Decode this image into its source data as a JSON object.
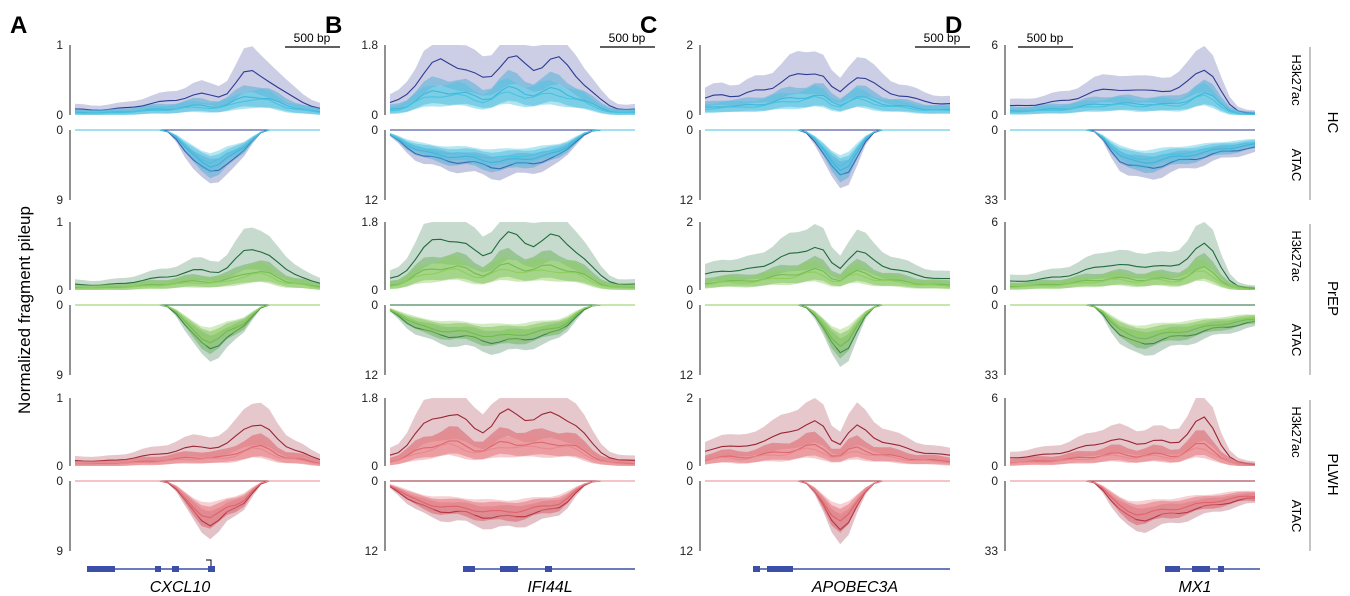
{
  "y_axis_label": "Normalized fragment pileup",
  "track_labels": {
    "h3k27ac": "H3k27ac",
    "atac": "ATAC"
  },
  "groups": [
    {
      "name": "HC",
      "colors": [
        "#2e3a94",
        "#3fa9d6",
        "#46c4e0"
      ]
    },
    {
      "name": "PrEP",
      "colors": [
        "#1f6b3a",
        "#5fae4a",
        "#8fce5e"
      ]
    },
    {
      "name": "PLWH",
      "colors": [
        "#9b2535",
        "#d64a55",
        "#e8898f"
      ]
    }
  ],
  "panels": [
    {
      "letter": "A",
      "gene": "CXCL10",
      "scale_bar": "500 bp",
      "h3k27ac_max": "1",
      "atac_max": "9",
      "h_zero": "0",
      "a_zero": "0"
    },
    {
      "letter": "B",
      "gene": "IFI44L",
      "scale_bar": "500 bp",
      "h3k27ac_max": "1.8",
      "atac_max": "12",
      "h_zero": "0",
      "a_zero": "0"
    },
    {
      "letter": "C",
      "gene": "APOBEC3A",
      "scale_bar": "500 bp",
      "h3k27ac_max": "2",
      "atac_max": "12",
      "h_zero": "0",
      "a_zero": "0"
    },
    {
      "letter": "D",
      "gene": "MX1",
      "scale_bar": "500 bp",
      "h3k27ac_max": "6",
      "atac_max": "33",
      "h_zero": "0",
      "a_zero": "0"
    }
  ],
  "chart_data": {
    "type": "area",
    "description_of_series": "Mean signal lines with shaded variability bands for H3K27ac (upward) and ATAC (downward) tracks per group and gene locus",
    "series_per_group": 3,
    "shapes": {
      "A": {
        "h3k27ac": [
          0.08,
          0.08,
          0.07,
          0.07,
          0.08,
          0.09,
          0.1,
          0.12,
          0.14,
          0.16,
          0.18,
          0.2,
          0.22,
          0.25,
          0.28,
          0.3,
          0.28,
          0.26,
          0.3,
          0.4,
          0.62,
          0.66,
          0.6,
          0.52,
          0.35,
          0.3,
          0.25,
          0.2,
          0.12,
          0.08
        ],
        "atac": [
          0,
          0,
          0,
          0,
          0,
          0,
          0,
          0,
          0,
          0,
          0,
          0,
          0.1,
          0.3,
          0.45,
          0.55,
          0.65,
          0.55,
          0.45,
          0.4,
          0.35,
          0.15,
          0,
          0,
          0,
          0,
          0,
          0,
          0,
          0
        ]
      },
      "B": {
        "h3k27ac": [
          0.15,
          0.2,
          0.3,
          0.45,
          0.6,
          0.7,
          0.8,
          0.78,
          0.72,
          0.65,
          0.55,
          0.5,
          0.55,
          0.75,
          0.82,
          0.8,
          0.72,
          0.65,
          0.7,
          0.78,
          0.8,
          0.72,
          0.6,
          0.45,
          0.3,
          0.2,
          0.12,
          0.08,
          0.08,
          0.08
        ],
        "atac": [
          0.05,
          0.15,
          0.25,
          0.32,
          0.38,
          0.4,
          0.42,
          0.44,
          0.45,
          0.46,
          0.48,
          0.5,
          0.52,
          0.53,
          0.52,
          0.5,
          0.48,
          0.46,
          0.44,
          0.42,
          0.38,
          0.3,
          0.15,
          0.05,
          0,
          0,
          0,
          0,
          0,
          0
        ]
      },
      "C": {
        "h3k27ac": [
          0.2,
          0.28,
          0.32,
          0.28,
          0.25,
          0.3,
          0.35,
          0.38,
          0.4,
          0.45,
          0.52,
          0.58,
          0.62,
          0.64,
          0.6,
          0.35,
          0.22,
          0.55,
          0.6,
          0.5,
          0.42,
          0.38,
          0.32,
          0.28,
          0.25,
          0.22,
          0.2,
          0.18,
          0.16,
          0.15
        ],
        "atac": [
          0,
          0,
          0,
          0,
          0,
          0,
          0,
          0,
          0,
          0,
          0,
          0,
          0,
          0.15,
          0.35,
          0.55,
          0.72,
          0.62,
          0.35,
          0.15,
          0,
          0,
          0,
          0,
          0,
          0,
          0,
          0,
          0,
          0
        ]
      },
      "D": {
        "h3k27ac": [
          0.12,
          0.13,
          0.14,
          0.15,
          0.16,
          0.18,
          0.2,
          0.22,
          0.25,
          0.28,
          0.32,
          0.36,
          0.4,
          0.38,
          0.34,
          0.32,
          0.35,
          0.4,
          0.36,
          0.3,
          0.35,
          0.48,
          0.68,
          0.72,
          0.55,
          0.3,
          0.12,
          0.05,
          0.03,
          0.02
        ],
        "atac": [
          0,
          0,
          0,
          0,
          0,
          0,
          0,
          0,
          0,
          0,
          0,
          0.1,
          0.3,
          0.45,
          0.52,
          0.55,
          0.54,
          0.52,
          0.5,
          0.48,
          0.45,
          0.42,
          0.4,
          0.38,
          0.35,
          0.32,
          0.3,
          0.28,
          0.26,
          0.25
        ]
      }
    }
  }
}
